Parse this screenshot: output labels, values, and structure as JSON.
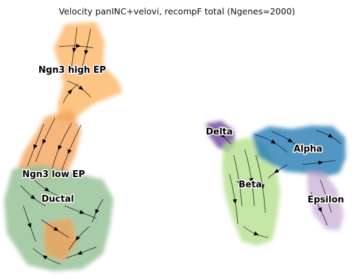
{
  "title": "Velocity panINC+velovi, recompF total (Ngenes=2000)",
  "chart_data": {
    "type": "scatter",
    "plot_kind": "embedding scatter with velocity stream arrows",
    "axes_visible": false,
    "grid": false,
    "legend": "on data",
    "clusters": [
      {
        "label": "Ngn3 high EP",
        "color": "#fdb462"
      },
      {
        "label": "Ngn3 low EP",
        "color": "#f4a259"
      },
      {
        "label": "Ductal",
        "color": "#8fbc8f"
      },
      {
        "label": "Delta",
        "color": "#6a3d9a"
      },
      {
        "label": "Beta",
        "color": "#b2df8a"
      },
      {
        "label": "Alpha",
        "color": "#1f78b4"
      },
      {
        "label": "Epsilon",
        "color": "#cab2d6"
      }
    ]
  }
}
